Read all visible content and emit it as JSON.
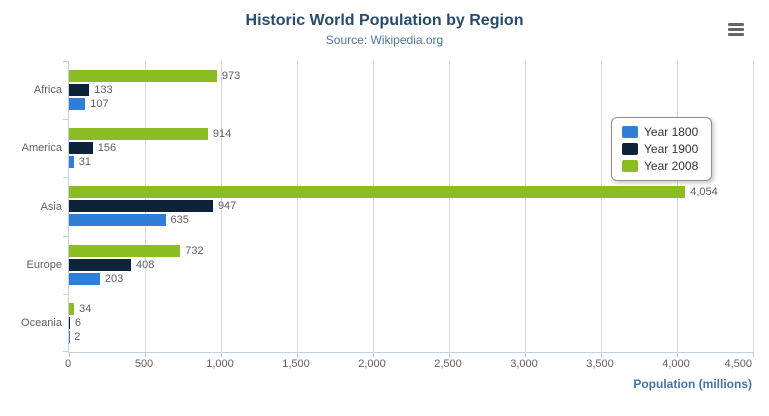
{
  "chart": {
    "title": "Historic World Population by Region",
    "subtitle": "Source: Wikipedia.org",
    "x_axis_title": "Population (millions)"
  },
  "colors": {
    "title": "#274b6d",
    "subtitle": "#4d759e",
    "axis_title": "#4572a7",
    "axis_labels": "#606060",
    "data_labels": "#606060",
    "grid_line": "#d8d8d8",
    "axis_line": "#c0d0e0",
    "series_year_1800": "#2f7ed8",
    "series_year_1900": "#0d233a",
    "series_year_2008": "#8bbc21"
  },
  "legend": {
    "position": "right",
    "items": [
      {
        "label": "Year 1800",
        "color": "#2f7ed8"
      },
      {
        "label": "Year 1900",
        "color": "#0d233a"
      },
      {
        "label": "Year 2008",
        "color": "#8bbc21"
      }
    ]
  },
  "chart_data": {
    "type": "bar",
    "title": "Historic World Population by Region",
    "subtitle": "Source: Wikipedia.org",
    "xlabel": "Population (millions)",
    "ylabel": "",
    "categories": [
      "Africa",
      "America",
      "Asia",
      "Europe",
      "Oceania"
    ],
    "series": [
      {
        "name": "Year 1800",
        "color": "#2f7ed8",
        "values": [
          107,
          31,
          635,
          203,
          2
        ]
      },
      {
        "name": "Year 1900",
        "color": "#0d233a",
        "values": [
          133,
          156,
          947,
          408,
          6
        ]
      },
      {
        "name": "Year 2008",
        "color": "#8bbc21",
        "values": [
          973,
          914,
          4054,
          732,
          34
        ]
      }
    ],
    "series_display_order_top_to_bottom": [
      "Year 2008",
      "Year 1900",
      "Year 1800"
    ],
    "xlim": [
      0,
      4500
    ],
    "xticks": [
      0,
      500,
      1000,
      1500,
      2000,
      2500,
      3000,
      3500,
      4000,
      4500
    ],
    "grid": "vertical",
    "legend_position": "right",
    "data_labels": true
  }
}
